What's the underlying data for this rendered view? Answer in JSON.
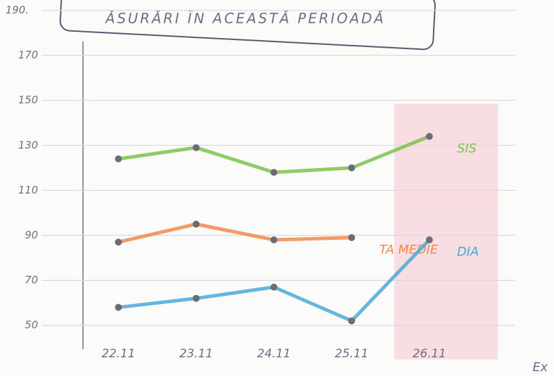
{
  "chart_data": {
    "type": "line",
    "title": "ĂSURĂRI ÎN ACEASTĂ PERIOADĂ",
    "categories": [
      "22.11",
      "23.11",
      "24.11",
      "25.11",
      "26.11"
    ],
    "series": [
      {
        "name": "SIS",
        "color": "#7cc24a",
        "values": [
          124,
          129,
          118,
          120,
          134
        ]
      },
      {
        "name": "TA MEDIE",
        "color": "#f08a4b",
        "values": [
          87,
          95,
          88,
          89,
          null
        ]
      },
      {
        "name": "DIA",
        "color": "#4aa8d8",
        "values": [
          58,
          62,
          67,
          52,
          88
        ]
      }
    ],
    "ylim": [
      45,
      190
    ],
    "yticks": [
      50,
      70,
      90,
      110,
      130,
      150,
      170,
      {
        "value": 190,
        "label": "190."
      }
    ],
    "grid": true,
    "annotations": [
      "Ex"
    ]
  }
}
